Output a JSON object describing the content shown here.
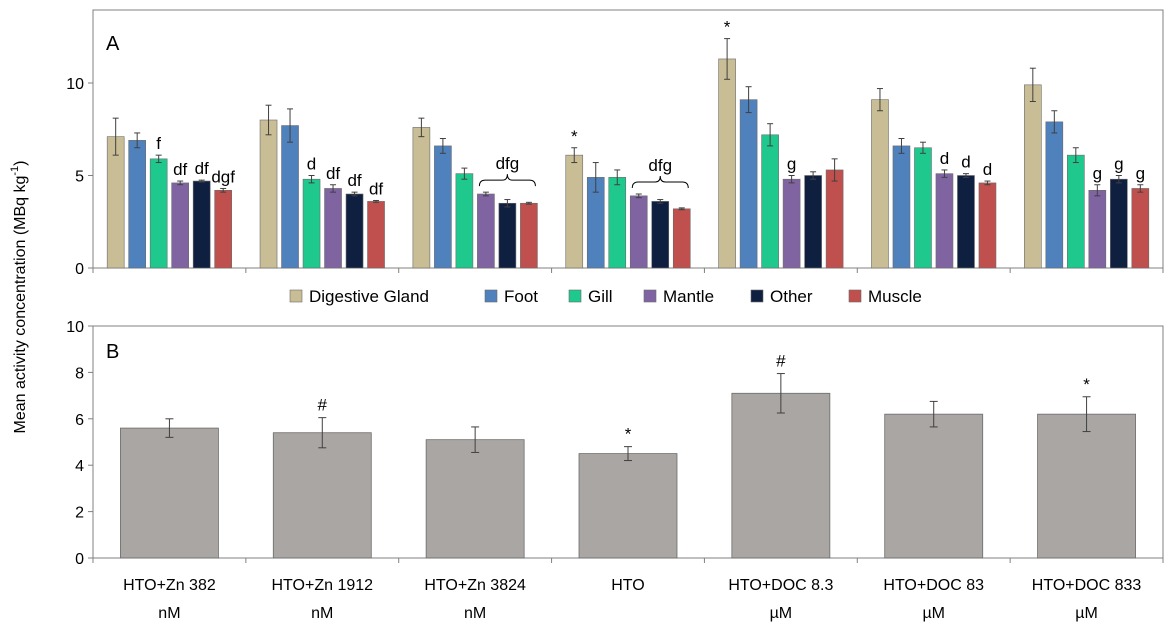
{
  "y_axis_label_main": "Mean activity concentration (MBq kg",
  "y_axis_label_sup": "-1",
  "y_axis_label_end": ")",
  "chart_data": [
    {
      "panel": "A",
      "type": "bar",
      "ylim": [
        0,
        13
      ],
      "yticks": [
        0,
        5,
        10
      ],
      "groups": 7,
      "series": [
        {
          "name": "Digestive Gland",
          "color": "#c9bd96",
          "values": [
            7.1,
            8.0,
            7.6,
            6.1,
            11.3,
            9.1,
            9.9
          ],
          "errors": [
            1.0,
            0.8,
            0.5,
            0.4,
            1.1,
            0.6,
            0.9
          ]
        },
        {
          "name": "Foot",
          "color": "#4f81bd",
          "values": [
            6.9,
            7.7,
            6.6,
            4.9,
            9.1,
            6.6,
            7.9
          ],
          "errors": [
            0.4,
            0.9,
            0.4,
            0.8,
            0.7,
            0.4,
            0.6
          ]
        },
        {
          "name": "Gill",
          "color": "#1fc98e",
          "values": [
            5.9,
            4.8,
            5.1,
            4.9,
            7.2,
            6.5,
            6.1
          ],
          "errors": [
            0.2,
            0.2,
            0.3,
            0.4,
            0.6,
            0.3,
            0.4
          ]
        },
        {
          "name": "Mantle",
          "color": "#8064a2",
          "values": [
            4.6,
            4.3,
            4.0,
            3.9,
            4.8,
            5.1,
            4.2
          ],
          "errors": [
            0.1,
            0.2,
            0.1,
            0.1,
            0.2,
            0.2,
            0.3
          ]
        },
        {
          "name": "Other",
          "color": "#0f1f40",
          "values": [
            4.7,
            4.0,
            3.5,
            3.6,
            5.0,
            5.0,
            4.8
          ],
          "errors": [
            0.05,
            0.1,
            0.2,
            0.1,
            0.2,
            0.1,
            0.2
          ]
        },
        {
          "name": "Muscle",
          "color": "#c0504d",
          "values": [
            4.2,
            3.6,
            3.5,
            3.2,
            5.3,
            4.6,
            4.3
          ],
          "errors": [
            0.1,
            0.05,
            0.05,
            0.05,
            0.6,
            0.1,
            0.2
          ]
        }
      ],
      "annotations": [
        {
          "group": 0,
          "series": 2,
          "text": "f"
        },
        {
          "group": 0,
          "series": 3,
          "text": "df"
        },
        {
          "group": 0,
          "series": 4,
          "text": "df"
        },
        {
          "group": 0,
          "series": 5,
          "text": "dgf"
        },
        {
          "group": 1,
          "series": 2,
          "text": "d"
        },
        {
          "group": 1,
          "series": 3,
          "text": "df"
        },
        {
          "group": 1,
          "series": 4,
          "text": "df"
        },
        {
          "group": 1,
          "series": 5,
          "text": "df"
        },
        {
          "group": 3,
          "series": 0,
          "text": "*"
        },
        {
          "group": 4,
          "series": 0,
          "text": "*"
        },
        {
          "group": 4,
          "series": 3,
          "text": "g"
        },
        {
          "group": 5,
          "series": 3,
          "text": "d"
        },
        {
          "group": 5,
          "series": 4,
          "text": "d"
        },
        {
          "group": 5,
          "series": 5,
          "text": "d"
        },
        {
          "group": 6,
          "series": 3,
          "text": "g"
        },
        {
          "group": 6,
          "series": 4,
          "text": "g"
        },
        {
          "group": 6,
          "series": 5,
          "text": "g"
        }
      ],
      "brackets": [
        {
          "group": 2,
          "from_series": 3,
          "to_series": 5,
          "text": "dfg"
        },
        {
          "group": 3,
          "from_series": 3,
          "to_series": 5,
          "text": "dfg"
        }
      ],
      "grid": false,
      "legend_placement": "bottom"
    },
    {
      "panel": "B",
      "type": "bar",
      "ylim": [
        0,
        10
      ],
      "yticks": [
        0,
        2,
        4,
        6,
        8,
        10
      ],
      "color": "#aaa6a4",
      "categories": [
        [
          "HTO+Zn 382",
          "nM"
        ],
        [
          "HTO+Zn 1912",
          "nM"
        ],
        [
          "HTO+Zn 3824",
          "nM"
        ],
        [
          "HTO",
          ""
        ],
        [
          "HTO+DOC 8.3",
          "µM"
        ],
        [
          "HTO+DOC 83",
          "µM"
        ],
        [
          "HTO+DOC 833",
          "µM"
        ]
      ],
      "values": [
        5.6,
        5.4,
        5.1,
        4.5,
        7.1,
        6.2,
        6.2
      ],
      "errors": [
        0.4,
        0.65,
        0.55,
        0.3,
        0.85,
        0.55,
        0.75
      ],
      "annotations": [
        "",
        "#",
        "",
        "*",
        "#",
        "",
        "*"
      ],
      "grid": false
    }
  ]
}
